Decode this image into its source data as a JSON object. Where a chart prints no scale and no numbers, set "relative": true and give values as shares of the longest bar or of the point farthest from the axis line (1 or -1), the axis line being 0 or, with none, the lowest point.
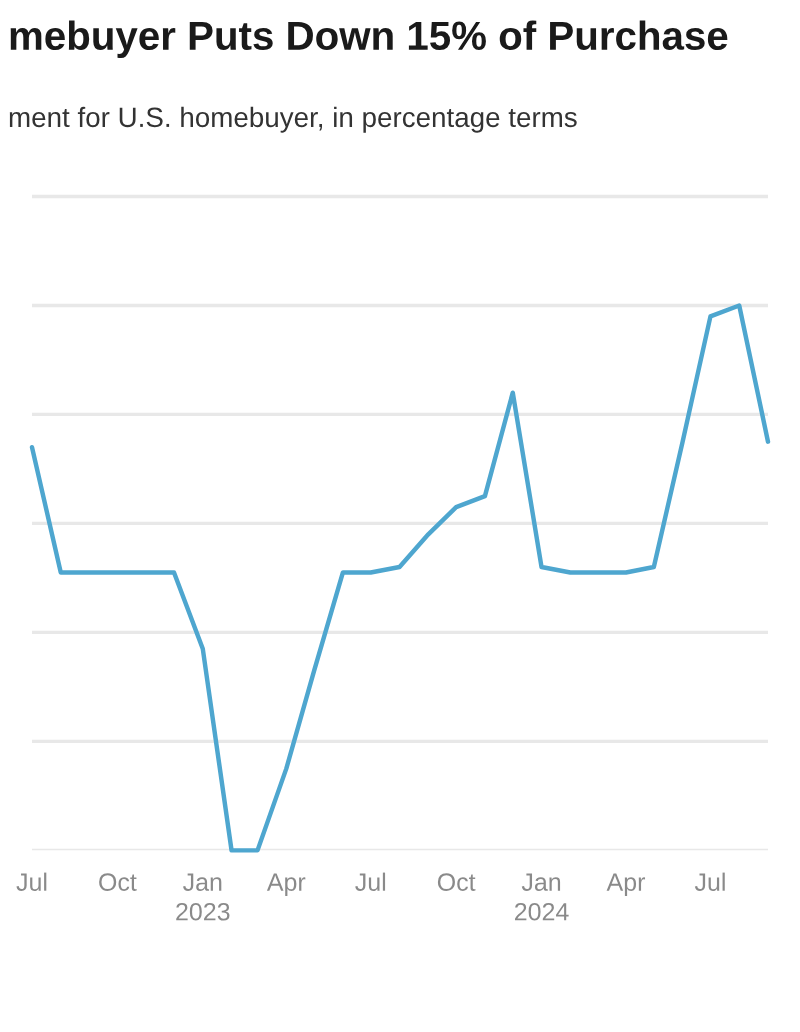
{
  "chart_data": {
    "type": "line",
    "title": "mebuyer Puts Down 15% of Purchase",
    "subtitle": "ment for U.S. homebuyer, in percentage terms",
    "relative": true,
    "grid": "y",
    "x": [
      "2022-07",
      "2022-08",
      "2022-09",
      "2022-10",
      "2022-11",
      "2022-12",
      "2023-01",
      "2023-02",
      "2023-03",
      "2023-04",
      "2023-05",
      "2023-06",
      "2023-07",
      "2023-08",
      "2023-09",
      "2023-10",
      "2023-11",
      "2023-12",
      "2024-01",
      "2024-02",
      "2024-03",
      "2024-04",
      "2024-05",
      "2024-06",
      "2024-07",
      "2024-08",
      "2024-09"
    ],
    "series": [
      {
        "color": "#4ea6cf",
        "values": [
          0.74,
          0.51,
          0.51,
          0.51,
          0.51,
          0.51,
          0.37,
          0,
          0,
          0.15,
          0.33,
          0.51,
          0.51,
          0.52,
          0.58,
          0.63,
          0.65,
          0.84,
          0.52,
          0.51,
          0.51,
          0.51,
          0.52,
          0.75,
          0.98,
          1,
          0.75
        ]
      }
    ],
    "xlim": [
      "2022-07",
      "2024-09"
    ],
    "xticks": [
      {
        "value": "2022-07",
        "label": "Jul"
      },
      {
        "value": "2022-10",
        "label": "Oct"
      },
      {
        "value": "2023-01",
        "label": "Jan\n2023"
      },
      {
        "value": "2023-04",
        "label": "Apr"
      },
      {
        "value": "2023-07",
        "label": "Jul"
      },
      {
        "value": "2023-10",
        "label": "Oct"
      },
      {
        "value": "2024-01",
        "label": "Jan\n2024"
      },
      {
        "value": "2024-04",
        "label": "Apr"
      },
      {
        "value": "2024-07",
        "label": "Jul"
      }
    ]
  }
}
